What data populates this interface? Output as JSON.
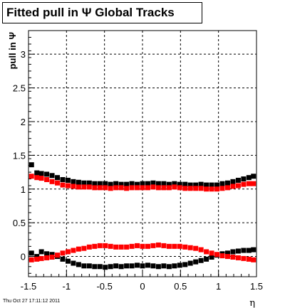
{
  "title": "Fitted pull in  Ψ   Global Tracks",
  "timestamp": "Thu Oct 27 17:11:12 2011",
  "chart_data": {
    "type": "scatter",
    "title": "Fitted pull in  Ψ   Global Tracks",
    "xlabel": "η",
    "ylabel": "pull in Ψ",
    "xlim": [
      -1.5,
      1.5
    ],
    "ylim": [
      -0.3,
      3.35
    ],
    "grid": true,
    "x_ticks": [
      "-1.5",
      "-1",
      "-0.5",
      "0",
      "0.5",
      "1",
      "1.5"
    ],
    "y_ticks": [
      "0",
      "0.5",
      "1",
      "1.5",
      "2",
      "2.5",
      "3"
    ],
    "series": [
      {
        "color": "#000000",
        "x": [
          -1.46,
          -1.39,
          -1.33,
          -1.26,
          -1.19,
          -1.12,
          -1.05,
          -0.98,
          -0.91,
          -0.84,
          -0.77,
          -0.7,
          -0.63,
          -0.56,
          -0.49,
          -0.42,
          -0.35,
          -0.28,
          -0.21,
          -0.14,
          -0.07,
          0.0,
          0.07,
          0.14,
          0.21,
          0.28,
          0.35,
          0.42,
          0.49,
          0.56,
          0.63,
          0.7,
          0.77,
          0.84,
          0.91,
          0.98,
          1.05,
          1.12,
          1.19,
          1.26,
          1.33,
          1.4,
          1.46
        ],
        "y": [
          1.36,
          1.24,
          1.23,
          1.22,
          1.2,
          1.17,
          1.14,
          1.13,
          1.11,
          1.1,
          1.09,
          1.09,
          1.08,
          1.08,
          1.08,
          1.07,
          1.08,
          1.07,
          1.07,
          1.08,
          1.07,
          1.08,
          1.08,
          1.09,
          1.08,
          1.08,
          1.07,
          1.08,
          1.07,
          1.07,
          1.06,
          1.06,
          1.07,
          1.06,
          1.06,
          1.06,
          1.08,
          1.09,
          1.11,
          1.13,
          1.15,
          1.17,
          1.19
        ]
      },
      {
        "color": "#ff0000",
        "x": [
          -1.46,
          -1.39,
          -1.33,
          -1.26,
          -1.19,
          -1.12,
          -1.05,
          -0.98,
          -0.91,
          -0.84,
          -0.77,
          -0.7,
          -0.63,
          -0.56,
          -0.49,
          -0.42,
          -0.35,
          -0.28,
          -0.21,
          -0.14,
          -0.07,
          0.0,
          0.07,
          0.14,
          0.21,
          0.28,
          0.35,
          0.42,
          0.49,
          0.56,
          0.63,
          0.7,
          0.77,
          0.84,
          0.91,
          0.98,
          1.05,
          1.12,
          1.19,
          1.26,
          1.33,
          1.4,
          1.46
        ],
        "y": [
          1.19,
          1.17,
          1.16,
          1.14,
          1.11,
          1.09,
          1.06,
          1.05,
          1.04,
          1.03,
          1.03,
          1.03,
          1.02,
          1.02,
          1.02,
          1.01,
          1.02,
          1.02,
          1.01,
          1.02,
          1.02,
          1.02,
          1.02,
          1.03,
          1.02,
          1.02,
          1.02,
          1.03,
          1.02,
          1.01,
          1.01,
          1.01,
          1.01,
          1.0,
          1.0,
          1.0,
          1.01,
          1.02,
          1.04,
          1.05,
          1.07,
          1.08,
          1.08
        ]
      },
      {
        "color": "#000000",
        "x": [
          -1.46,
          -1.39,
          -1.33,
          -1.26,
          -1.19,
          -1.12,
          -1.05,
          -0.98,
          -0.91,
          -0.84,
          -0.77,
          -0.7,
          -0.63,
          -0.56,
          -0.49,
          -0.42,
          -0.35,
          -0.28,
          -0.21,
          -0.14,
          -0.07,
          0.0,
          0.07,
          0.14,
          0.21,
          0.28,
          0.35,
          0.42,
          0.49,
          0.56,
          0.63,
          0.7,
          0.77,
          0.84,
          0.91,
          0.98,
          1.05,
          1.12,
          1.19,
          1.26,
          1.33,
          1.4,
          1.46
        ],
        "y": [
          0.05,
          0.0,
          0.07,
          0.04,
          0.03,
          0.0,
          -0.04,
          -0.07,
          -0.1,
          -0.12,
          -0.14,
          -0.14,
          -0.15,
          -0.15,
          -0.16,
          -0.15,
          -0.14,
          -0.15,
          -0.14,
          -0.14,
          -0.13,
          -0.14,
          -0.13,
          -0.14,
          -0.15,
          -0.14,
          -0.15,
          -0.14,
          -0.13,
          -0.12,
          -0.1,
          -0.08,
          -0.06,
          -0.04,
          -0.01,
          0.02,
          0.04,
          0.05,
          0.07,
          0.08,
          0.09,
          0.09,
          0.1
        ]
      },
      {
        "color": "#ff0000",
        "x": [
          -1.46,
          -1.39,
          -1.33,
          -1.26,
          -1.19,
          -1.12,
          -1.05,
          -0.98,
          -0.91,
          -0.84,
          -0.77,
          -0.7,
          -0.63,
          -0.56,
          -0.49,
          -0.42,
          -0.35,
          -0.28,
          -0.21,
          -0.14,
          -0.07,
          0.0,
          0.07,
          0.14,
          0.21,
          0.28,
          0.35,
          0.42,
          0.49,
          0.56,
          0.63,
          0.7,
          0.77,
          0.84,
          0.91,
          0.98,
          1.05,
          1.12,
          1.19,
          1.26,
          1.33,
          1.4,
          1.46
        ],
        "y": [
          -0.05,
          -0.04,
          -0.03,
          -0.02,
          -0.01,
          0.02,
          0.05,
          0.07,
          0.09,
          0.11,
          0.12,
          0.14,
          0.15,
          0.16,
          0.16,
          0.15,
          0.14,
          0.14,
          0.14,
          0.15,
          0.16,
          0.15,
          0.15,
          0.16,
          0.17,
          0.16,
          0.15,
          0.15,
          0.15,
          0.14,
          0.13,
          0.12,
          0.1,
          0.07,
          0.05,
          0.03,
          0.01,
          0.0,
          -0.01,
          -0.02,
          -0.03,
          -0.04,
          -0.05
        ]
      }
    ]
  }
}
